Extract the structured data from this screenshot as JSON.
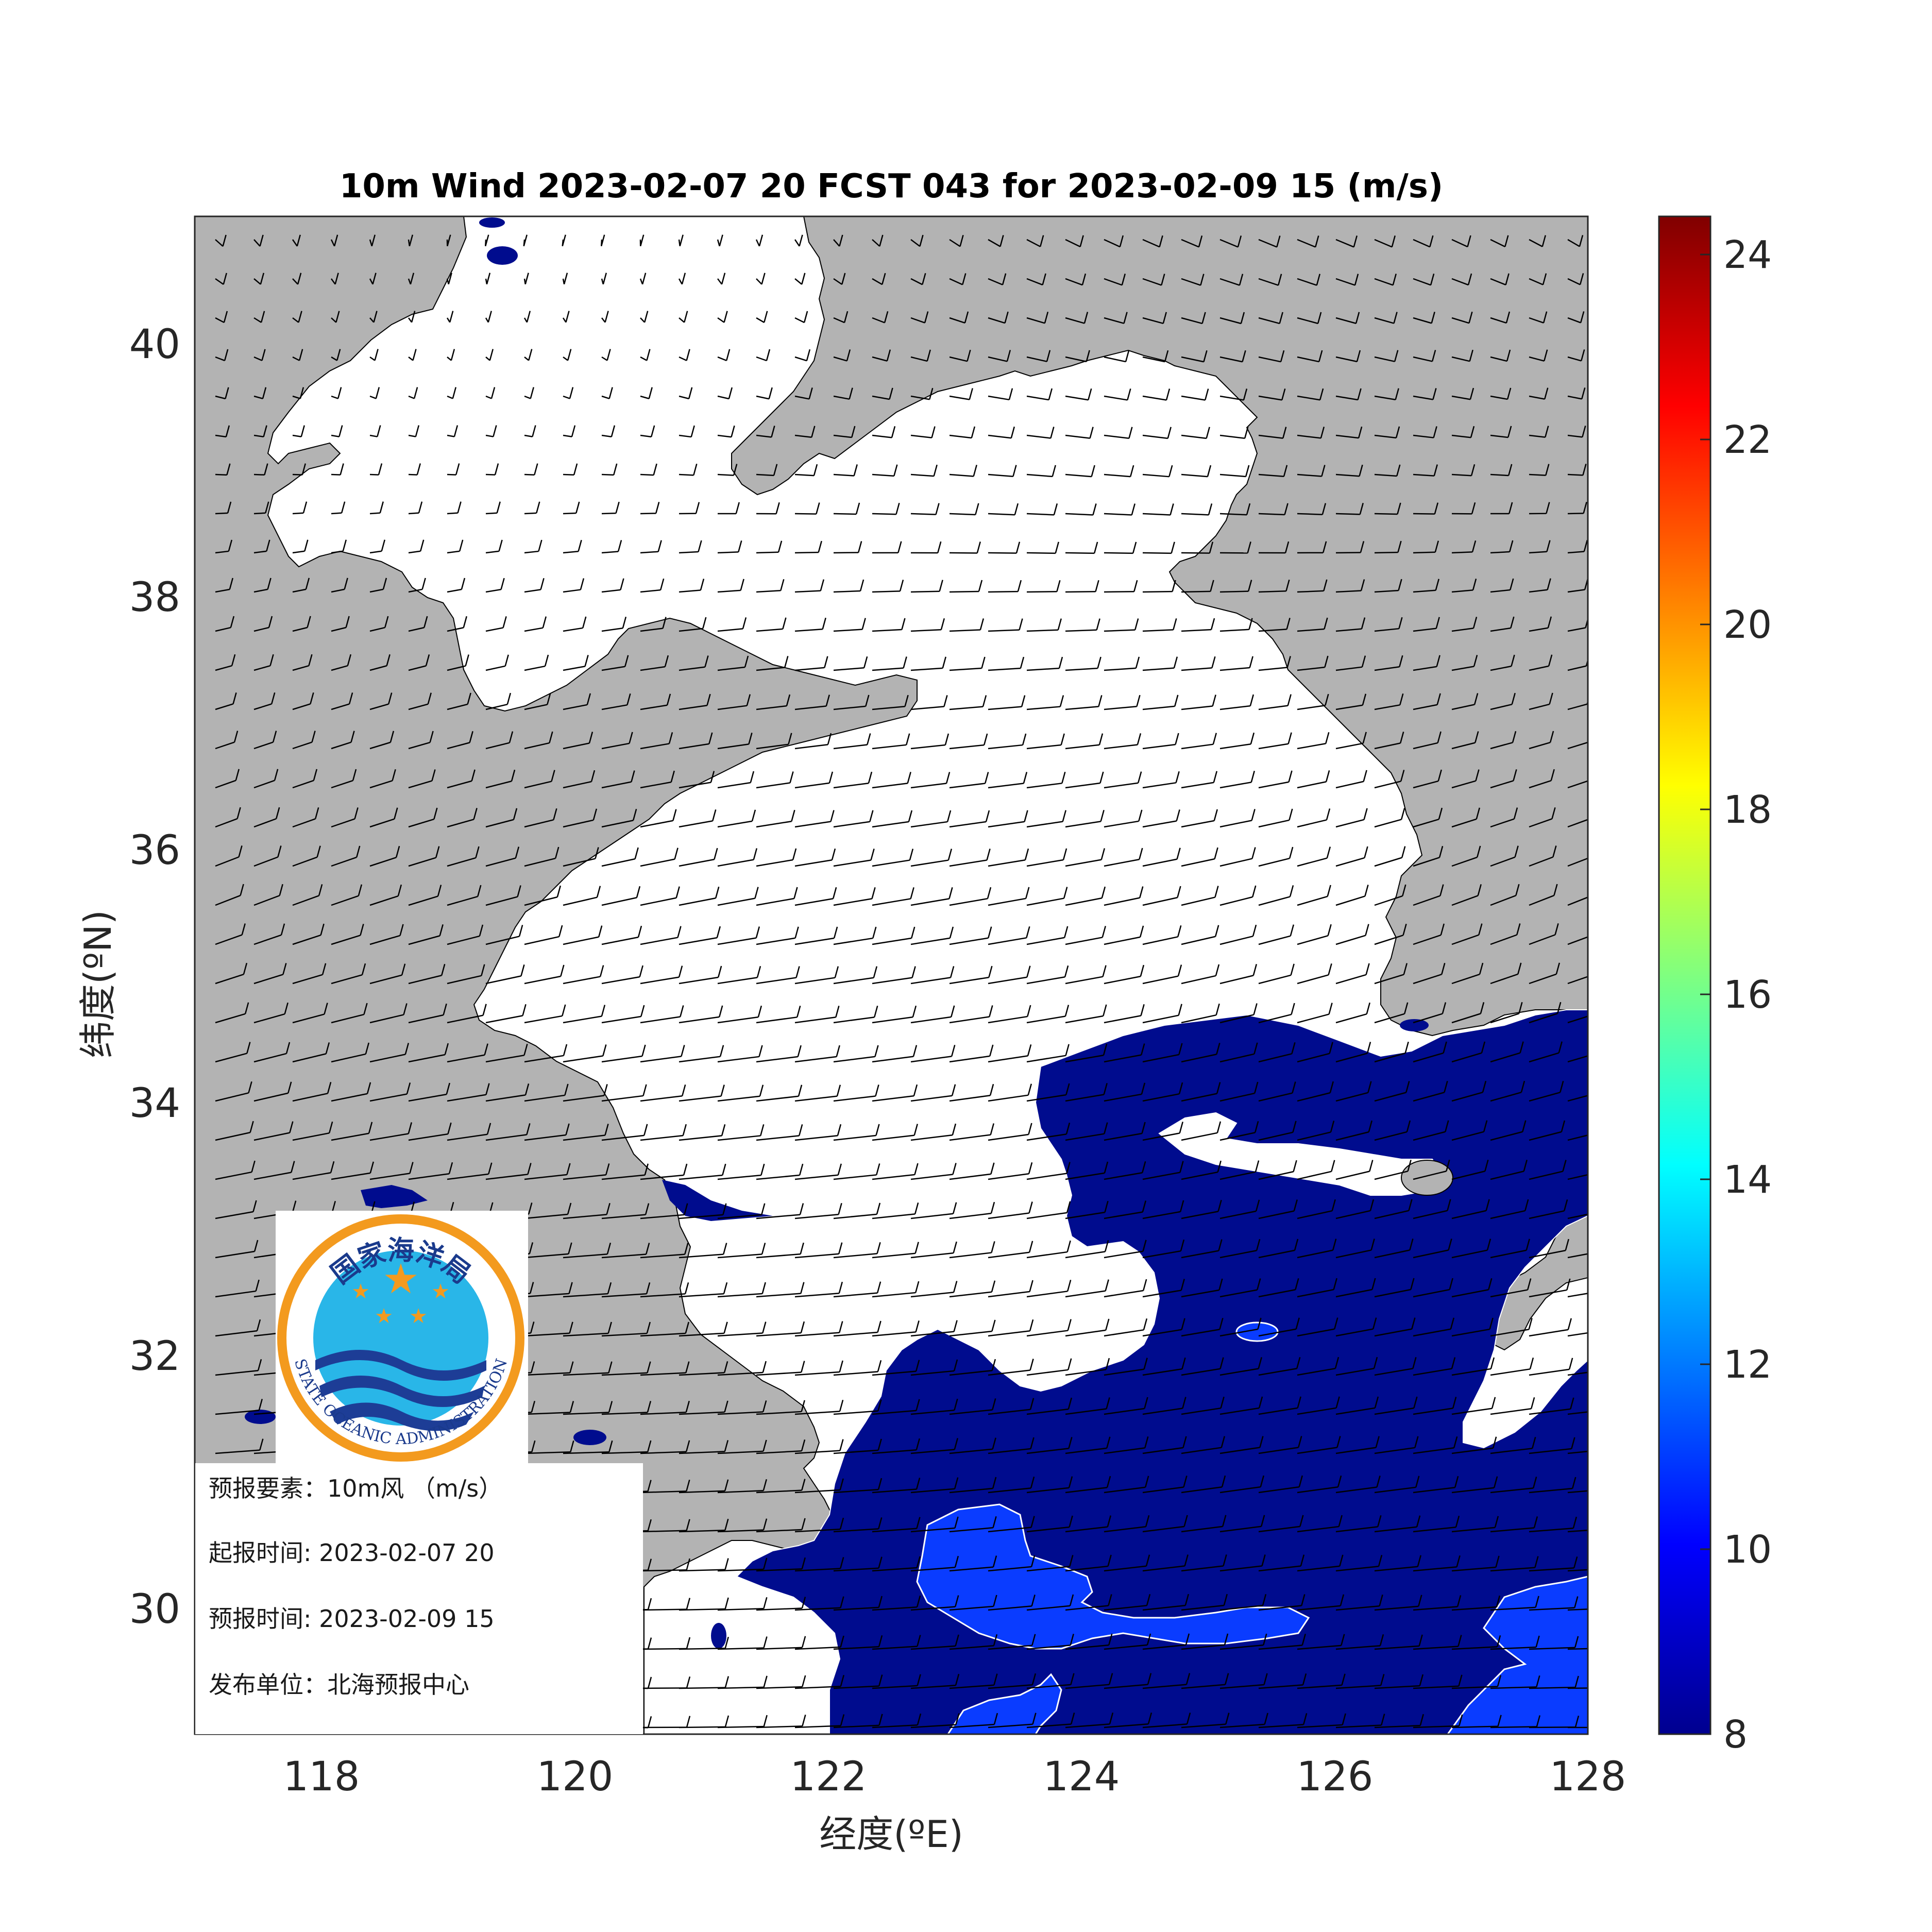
{
  "title": "10m Wind 2023-02-07 20 FCST 043 for 2023-02-09 15 (m/s)",
  "x_axis": {
    "label": "经度(ºE)",
    "ticks": [
      "118",
      "120",
      "122",
      "124",
      "126",
      "128"
    ],
    "range": [
      117,
      128
    ]
  },
  "y_axis": {
    "label": "纬度(ºN)",
    "ticks": [
      "30",
      "32",
      "34",
      "36",
      "38",
      "40"
    ],
    "range": [
      29,
      41
    ]
  },
  "colorbar": {
    "ticks": [
      "8",
      "10",
      "12",
      "14",
      "16",
      "18",
      "20",
      "22",
      "24"
    ],
    "range": [
      8,
      24.4
    ],
    "colormap": "jet"
  },
  "logo": {
    "name_cn": "国家海洋局",
    "name_en": "STATE OCEANIC ADMINISTRATION"
  },
  "info": {
    "element": "预报要素：10m风 （m/s）",
    "start_time": "起报时间: 2023-02-07 20",
    "valid_time": "预报时间: 2023-02-09 15",
    "issuer": "发布单位：北海预报中心"
  },
  "colors": {
    "land": "#b3b3b3",
    "sea_calm": "#ffffff",
    "wind_8_10": "#000c8e",
    "wind_10_12": "#0a3cff",
    "barb": "#000000",
    "logo_ring": "#f39a1e"
  },
  "chart_data": {
    "type": "heatmap",
    "description_series": [
      {
        "name": "wind_speed_ms",
        "values": [
          8,
          10
        ]
      }
    ],
    "xlim": [
      117,
      128
    ],
    "ylim": [
      29,
      41
    ],
    "barb_grid_spacing_deg": 0.3
  }
}
